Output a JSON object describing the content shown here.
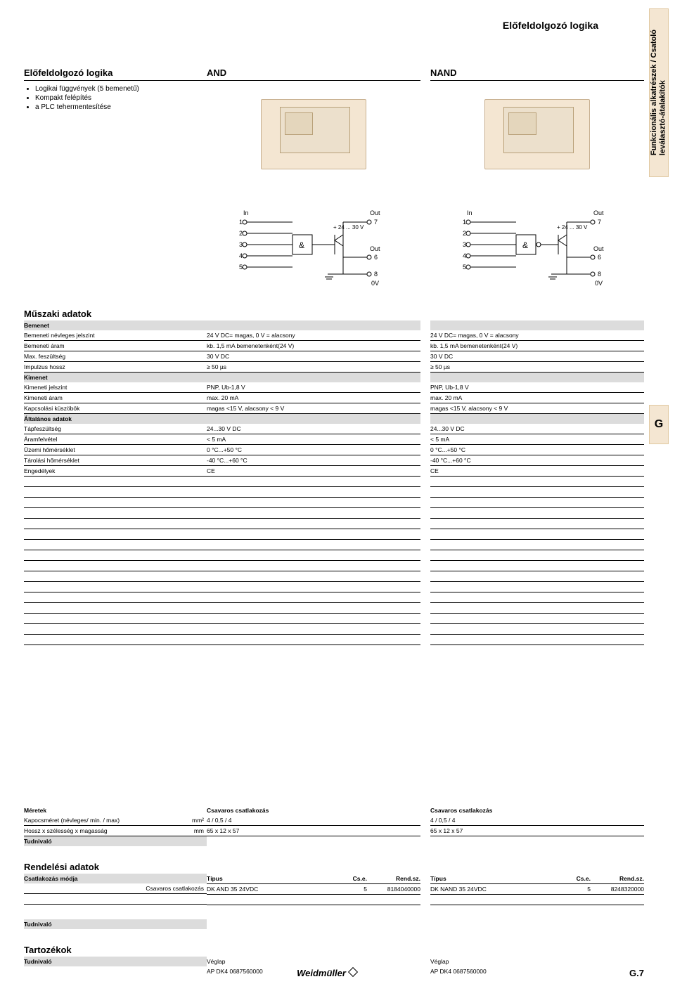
{
  "header": {
    "side_tab_line1": "Funkcionális alkatrészek / Csatoló",
    "side_tab_line2": "leválasztó-átalakítók",
    "page_title": "Előfeldolgozó logika",
    "left_title": "Előfeldolgozó logika",
    "bullets": [
      "Logikai függvények (5 bemenetű)",
      "Kompakt felépítés",
      "a PLC tehermentesítése"
    ],
    "col_and": "AND",
    "col_nand": "NAND",
    "g_tab": "G"
  },
  "circuit": {
    "in_label": "In",
    "out_label": "Out",
    "inputs": [
      "1",
      "2",
      "3",
      "4",
      "5"
    ],
    "out_top": "7",
    "out_mid": "6",
    "out_bot": "8",
    "supply": "+ 24 ... 30 V",
    "gnd": "0V",
    "gate_and": "&",
    "gate_nand": "&"
  },
  "specs": {
    "section": "Műszaki adatok",
    "groups": [
      {
        "head": "Bemenet",
        "rows": [
          {
            "label": "Bemeneti névleges jelszint",
            "and": "24 V DC= magas, 0 V = alacsony",
            "nand": "24 V DC= magas, 0 V = alacsony"
          },
          {
            "label": "Bemeneti áram",
            "and": "kb. 1,5 mA bemenetenként(24 V)",
            "nand": "kb. 1,5 mA bemenetenként(24 V)"
          },
          {
            "label": "Max. feszültség",
            "and": "30 V DC",
            "nand": "30 V DC"
          },
          {
            "label": "Impulzus hossz",
            "and": "≥ 50 µs",
            "nand": "≥ 50 µs"
          }
        ]
      },
      {
        "head": "Kimenet",
        "rows": [
          {
            "label": "Kimeneti jelszint",
            "and": "PNP, Ub-1,8 V",
            "nand": "PNP, Ub-1,8 V"
          },
          {
            "label": "Kimeneti áram",
            "and": "max. 20 mA",
            "nand": "max. 20 mA"
          },
          {
            "label": "Kapcsolási küszöbök",
            "and": "magas <15 V, alacsony < 9 V",
            "nand": "magas <15 V, alacsony < 9 V"
          }
        ]
      },
      {
        "head": "Általános adatok",
        "rows": [
          {
            "label": "Tápfeszültség",
            "and": "24...30 V DC",
            "nand": "24...30 V DC"
          },
          {
            "label": "Áramfelvétel",
            "and": "< 5 mA",
            "nand": "< 5 mA"
          },
          {
            "label": "Üzemi hőmérséklet",
            "and": "0 °C...+50 °C",
            "nand": "0 °C...+50 °C"
          },
          {
            "label": "Tárolási hőmérséklet",
            "and": "-40 °C...+60 °C",
            "nand": "-40 °C...+60 °C"
          },
          {
            "label": "Engedélyek",
            "and": "CE",
            "nand": "CE"
          }
        ]
      }
    ]
  },
  "dims": {
    "title": "Méretek",
    "col_head": "Csavaros csatlakozás",
    "rows": [
      {
        "label": "Kapocsméret (névleges/ min. / max)",
        "unit": "mm²",
        "and": "4 / 0,5 / 4",
        "nand": "4 / 0,5 / 4"
      },
      {
        "label": "Hossz x szélesség x magasság",
        "unit": "mm",
        "and": "65 x 12 x 57",
        "nand": "65 x 12 x 57"
      }
    ],
    "note_label": "Tudnivaló"
  },
  "order": {
    "title": "Rendelési adatok",
    "mode_label": "Csatlakozás módja",
    "mode_value": "Csavaros csatlakozás",
    "h_type": "Típus",
    "h_pkg": "Cs.e.",
    "h_ord": "Rend.sz.",
    "and": {
      "type": "DK AND 35 24VDC",
      "pkg": "5",
      "ord": "8184040000"
    },
    "nand": {
      "type": "DK NAND 35 24VDC",
      "pkg": "5",
      "ord": "8248320000"
    },
    "note_label": "Tudnivaló"
  },
  "acc": {
    "title": "Tartozékok",
    "note_label": "Tudnivaló",
    "and": {
      "name": "Véglap",
      "line": "AP DK4   0687560000"
    },
    "nand": {
      "name": "Véglap",
      "line": "AP DK4   0687560000"
    }
  },
  "footer": {
    "brand": "Weidmüller",
    "page": "G.7"
  }
}
